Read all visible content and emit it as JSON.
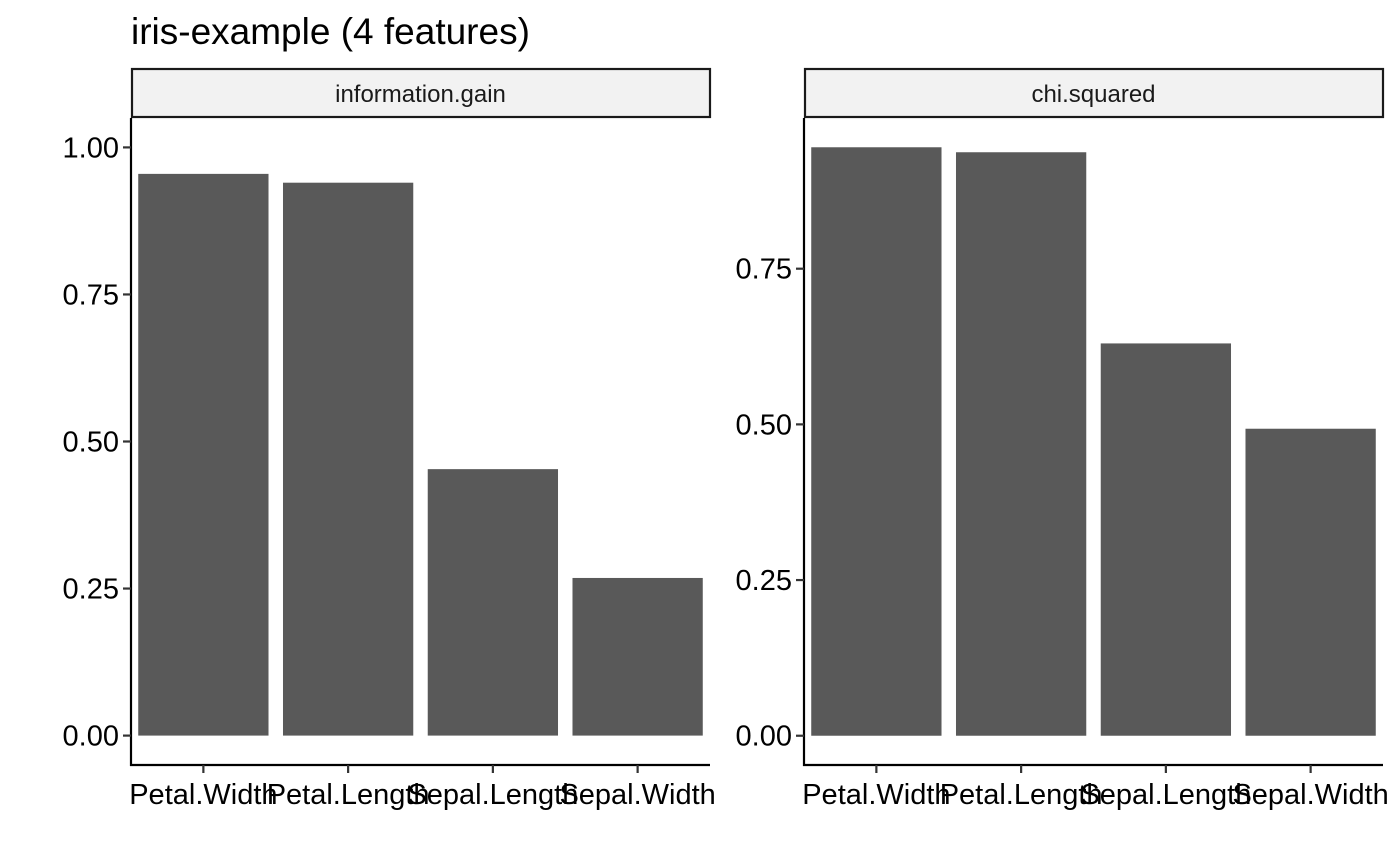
{
  "title": "iris-example (4 features)",
  "chart_data": {
    "type": "bar",
    "title": "iris-example (4 features)",
    "facets": [
      {
        "name": "information.gain",
        "categories": [
          "Petal.Width",
          "Petal.Length",
          "Sepal.Length",
          "Sepal.Width"
        ],
        "values": [
          0.955,
          0.94,
          0.453,
          0.268
        ],
        "ylim": [
          -0.05,
          1.05
        ],
        "yticks": [
          0.0,
          0.25,
          0.5,
          0.75,
          1.0
        ],
        "ytick_labels": [
          "0.00",
          "0.25",
          "0.50",
          "0.75",
          "1.00"
        ]
      },
      {
        "name": "chi.squared",
        "categories": [
          "Petal.Width",
          "Petal.Length",
          "Sepal.Length",
          "Sepal.Width"
        ],
        "values": [
          0.945,
          0.937,
          0.63,
          0.493
        ],
        "ylim": [
          -0.047,
          0.992
        ],
        "yticks": [
          0.0,
          0.25,
          0.5,
          0.75
        ],
        "ytick_labels": [
          "0.00",
          "0.25",
          "0.50",
          "0.75"
        ]
      }
    ],
    "bar_color": "#595959",
    "strip_color": "#f2f2f2",
    "grid": false,
    "legend": "none",
    "xlabel": "",
    "ylabel": ""
  }
}
